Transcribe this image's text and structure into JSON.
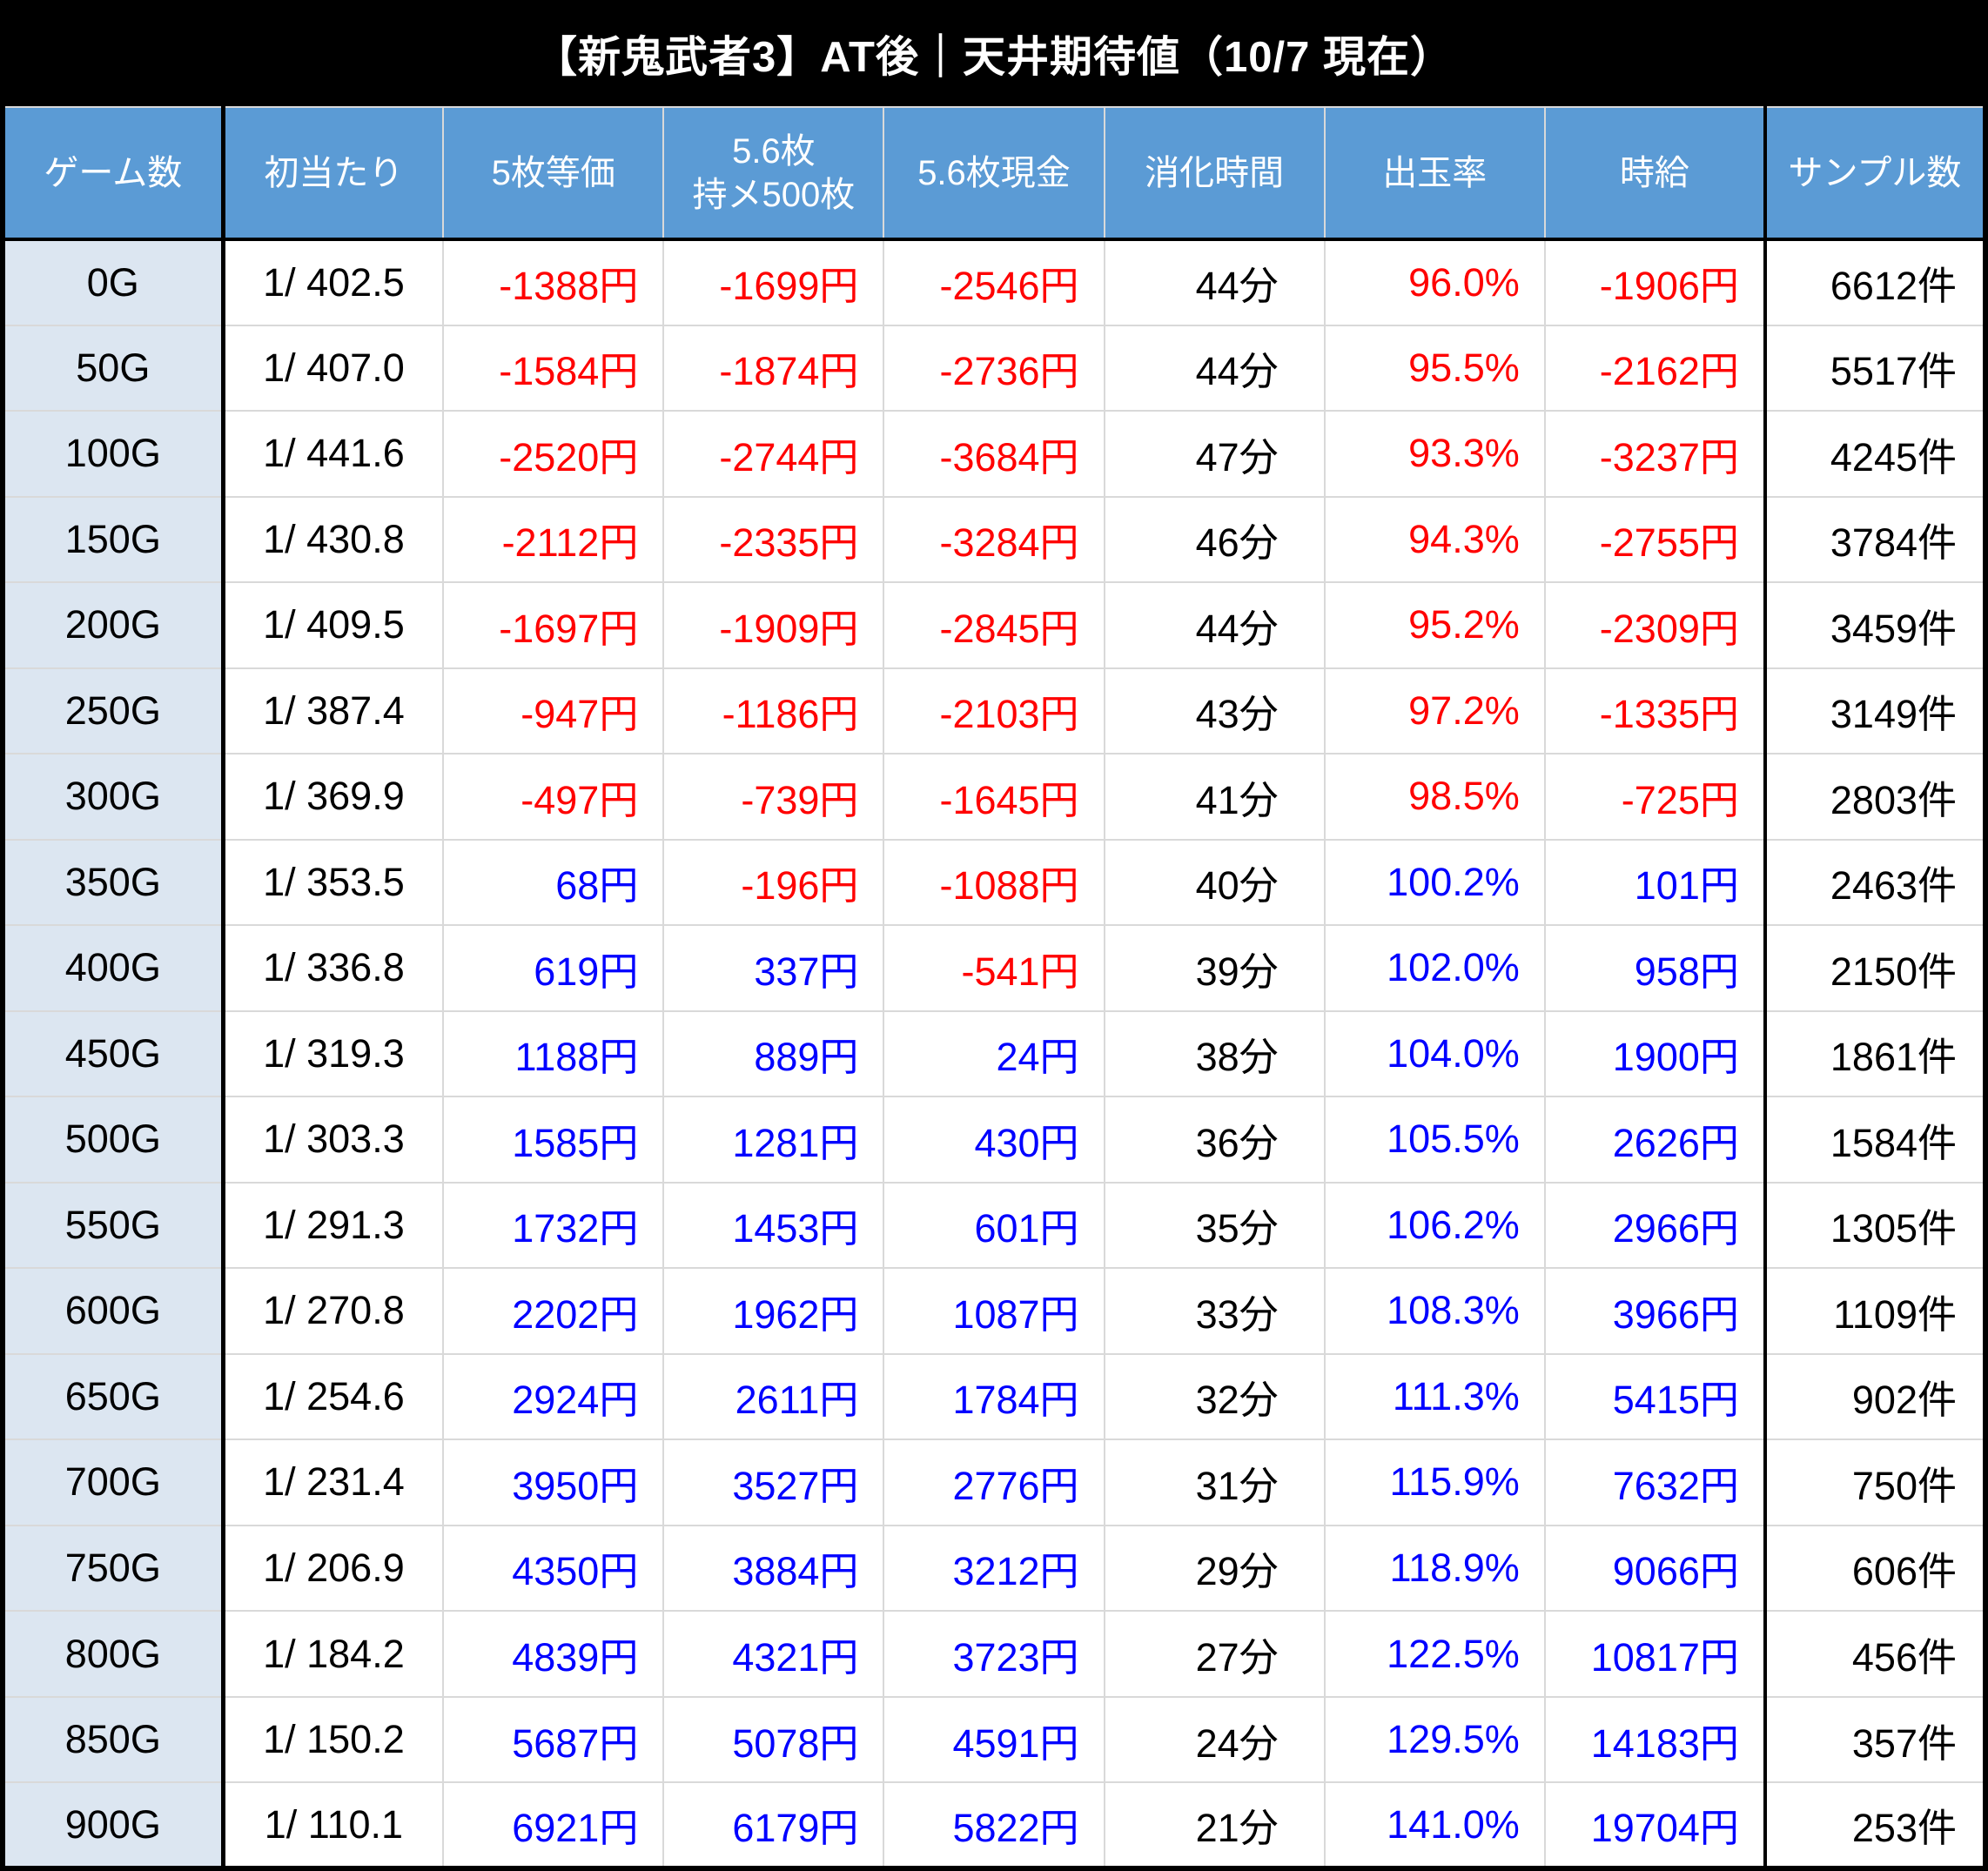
{
  "title": "【新鬼武者3】AT後｜天井期待値（10/7 現在）",
  "colors": {
    "negative": "#ff0000",
    "positive": "#0000ff",
    "header_bg": "#5b9bd5",
    "first_col_bg": "#dce6f1",
    "grid_line": "#d9d9d9",
    "title_bg": "#000000",
    "title_text": "#ffffff"
  },
  "chart_data": {
    "type": "table",
    "title": "【新鬼武者3】AT後｜天井期待値（10/7 現在）",
    "columns": [
      {
        "id": "games",
        "label": "ゲーム数",
        "kind": "label",
        "align": "center"
      },
      {
        "id": "first-hit",
        "label": "初当たり",
        "kind": "plain",
        "align": "center"
      },
      {
        "id": "ev-5mai-touka",
        "label": "5枚等価",
        "kind": "money",
        "align": "right"
      },
      {
        "id": "ev-56mai-500",
        "label": "5.6枚\n持メ500枚",
        "kind": "money",
        "align": "right"
      },
      {
        "id": "ev-56mai-cash",
        "label": "5.6枚現金",
        "kind": "money",
        "align": "right"
      },
      {
        "id": "play-time",
        "label": "消化時間",
        "kind": "plain",
        "align": "right"
      },
      {
        "id": "payout-rate",
        "label": "出玉率",
        "kind": "percent",
        "align": "right"
      },
      {
        "id": "hourly-wage",
        "label": "時給",
        "kind": "money",
        "align": "right"
      },
      {
        "id": "sample-count",
        "label": "サンプル数",
        "kind": "plain",
        "align": "right"
      }
    ],
    "rows": [
      [
        "0G",
        "1/ 402.5",
        "-1388円",
        "-1699円",
        "-2546円",
        "44分",
        "96.0%",
        "-1906円",
        "6612件"
      ],
      [
        "50G",
        "1/ 407.0",
        "-1584円",
        "-1874円",
        "-2736円",
        "44分",
        "95.5%",
        "-2162円",
        "5517件"
      ],
      [
        "100G",
        "1/ 441.6",
        "-2520円",
        "-2744円",
        "-3684円",
        "47分",
        "93.3%",
        "-3237円",
        "4245件"
      ],
      [
        "150G",
        "1/ 430.8",
        "-2112円",
        "-2335円",
        "-3284円",
        "46分",
        "94.3%",
        "-2755円",
        "3784件"
      ],
      [
        "200G",
        "1/ 409.5",
        "-1697円",
        "-1909円",
        "-2845円",
        "44分",
        "95.2%",
        "-2309円",
        "3459件"
      ],
      [
        "250G",
        "1/ 387.4",
        "-947円",
        "-1186円",
        "-2103円",
        "43分",
        "97.2%",
        "-1335円",
        "3149件"
      ],
      [
        "300G",
        "1/ 369.9",
        "-497円",
        "-739円",
        "-1645円",
        "41分",
        "98.5%",
        "-725円",
        "2803件"
      ],
      [
        "350G",
        "1/ 353.5",
        "68円",
        "-196円",
        "-1088円",
        "40分",
        "100.2%",
        "101円",
        "2463件"
      ],
      [
        "400G",
        "1/ 336.8",
        "619円",
        "337円",
        "-541円",
        "39分",
        "102.0%",
        "958円",
        "2150件"
      ],
      [
        "450G",
        "1/ 319.3",
        "1188円",
        "889円",
        "24円",
        "38分",
        "104.0%",
        "1900円",
        "1861件"
      ],
      [
        "500G",
        "1/ 303.3",
        "1585円",
        "1281円",
        "430円",
        "36分",
        "105.5%",
        "2626円",
        "1584件"
      ],
      [
        "550G",
        "1/ 291.3",
        "1732円",
        "1453円",
        "601円",
        "35分",
        "106.2%",
        "2966円",
        "1305件"
      ],
      [
        "600G",
        "1/ 270.8",
        "2202円",
        "1962円",
        "1087円",
        "33分",
        "108.3%",
        "3966円",
        "1109件"
      ],
      [
        "650G",
        "1/ 254.6",
        "2924円",
        "2611円",
        "1784円",
        "32分",
        "111.3%",
        "5415円",
        "902件"
      ],
      [
        "700G",
        "1/ 231.4",
        "3950円",
        "3527円",
        "2776円",
        "31分",
        "115.9%",
        "7632円",
        "750件"
      ],
      [
        "750G",
        "1/ 206.9",
        "4350円",
        "3884円",
        "3212円",
        "29分",
        "118.9%",
        "9066円",
        "606件"
      ],
      [
        "800G",
        "1/ 184.2",
        "4839円",
        "4321円",
        "3723円",
        "27分",
        "122.5%",
        "10817円",
        "456件"
      ],
      [
        "850G",
        "1/ 150.2",
        "5687円",
        "5078円",
        "4591円",
        "24分",
        "129.5%",
        "14183円",
        "357件"
      ],
      [
        "900G",
        "1/ 110.1",
        "6921円",
        "6179円",
        "5822円",
        "21分",
        "141.0%",
        "19704円",
        "253件"
      ]
    ]
  }
}
